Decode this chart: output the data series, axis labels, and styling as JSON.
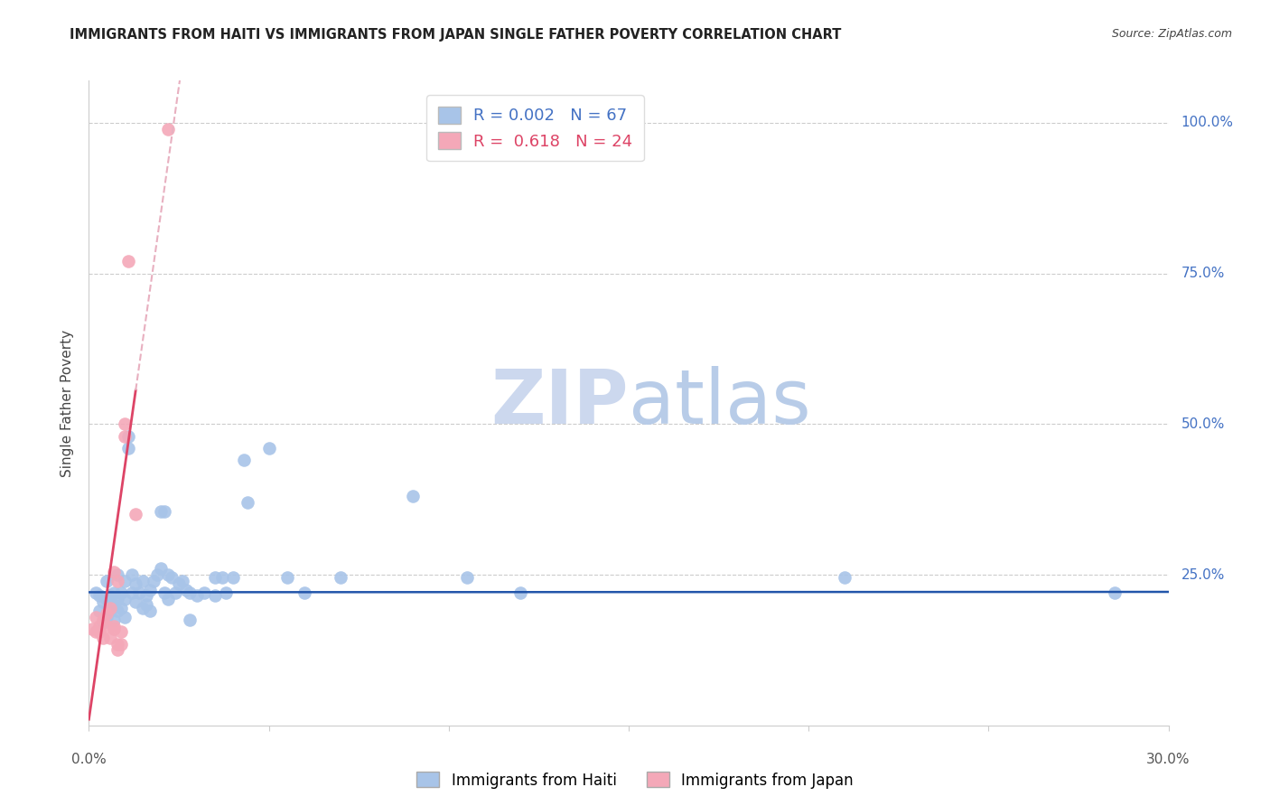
{
  "title": "IMMIGRANTS FROM HAITI VS IMMIGRANTS FROM JAPAN SINGLE FATHER POVERTY CORRELATION CHART",
  "source": "Source: ZipAtlas.com",
  "ylabel": "Single Father Poverty",
  "ytick_labels": [
    "100.0%",
    "75.0%",
    "50.0%",
    "25.0%"
  ],
  "ytick_values": [
    1.0,
    0.75,
    0.5,
    0.25
  ],
  "xlim": [
    0.0,
    0.3
  ],
  "ylim": [
    0.0,
    1.07
  ],
  "R_haiti": 0.002,
  "N_haiti": 67,
  "R_japan": 0.618,
  "N_japan": 24,
  "haiti_color": "#a8c4e8",
  "japan_color": "#f4a8b8",
  "trend_haiti_color": "#2255aa",
  "trend_japan_color": "#dd4466",
  "trend_dashed_color": "#e8b0c0",
  "watermark_zip_color": "#ccd8ee",
  "watermark_atlas_color": "#b8cce8",
  "haiti_points": [
    [
      0.002,
      0.22
    ],
    [
      0.003,
      0.215
    ],
    [
      0.003,
      0.19
    ],
    [
      0.004,
      0.205
    ],
    [
      0.004,
      0.17
    ],
    [
      0.005,
      0.24
    ],
    [
      0.005,
      0.21
    ],
    [
      0.005,
      0.18
    ],
    [
      0.006,
      0.215
    ],
    [
      0.006,
      0.19
    ],
    [
      0.007,
      0.22
    ],
    [
      0.007,
      0.2
    ],
    [
      0.007,
      0.175
    ],
    [
      0.008,
      0.25
    ],
    [
      0.008,
      0.21
    ],
    [
      0.008,
      0.19
    ],
    [
      0.009,
      0.22
    ],
    [
      0.009,
      0.195
    ],
    [
      0.01,
      0.24
    ],
    [
      0.01,
      0.21
    ],
    [
      0.01,
      0.18
    ],
    [
      0.011,
      0.48
    ],
    [
      0.011,
      0.46
    ],
    [
      0.012,
      0.25
    ],
    [
      0.012,
      0.22
    ],
    [
      0.013,
      0.235
    ],
    [
      0.013,
      0.205
    ],
    [
      0.014,
      0.22
    ],
    [
      0.015,
      0.195
    ],
    [
      0.015,
      0.24
    ],
    [
      0.016,
      0.215
    ],
    [
      0.016,
      0.2
    ],
    [
      0.017,
      0.225
    ],
    [
      0.017,
      0.19
    ],
    [
      0.018,
      0.24
    ],
    [
      0.019,
      0.25
    ],
    [
      0.02,
      0.355
    ],
    [
      0.02,
      0.26
    ],
    [
      0.021,
      0.355
    ],
    [
      0.021,
      0.22
    ],
    [
      0.022,
      0.25
    ],
    [
      0.022,
      0.21
    ],
    [
      0.023,
      0.245
    ],
    [
      0.024,
      0.22
    ],
    [
      0.025,
      0.235
    ],
    [
      0.026,
      0.24
    ],
    [
      0.027,
      0.225
    ],
    [
      0.028,
      0.22
    ],
    [
      0.028,
      0.175
    ],
    [
      0.03,
      0.215
    ],
    [
      0.032,
      0.22
    ],
    [
      0.035,
      0.245
    ],
    [
      0.035,
      0.215
    ],
    [
      0.037,
      0.245
    ],
    [
      0.038,
      0.22
    ],
    [
      0.04,
      0.245
    ],
    [
      0.043,
      0.44
    ],
    [
      0.044,
      0.37
    ],
    [
      0.05,
      0.46
    ],
    [
      0.055,
      0.245
    ],
    [
      0.06,
      0.22
    ],
    [
      0.07,
      0.245
    ],
    [
      0.09,
      0.38
    ],
    [
      0.105,
      0.245
    ],
    [
      0.12,
      0.22
    ],
    [
      0.21,
      0.245
    ],
    [
      0.285,
      0.22
    ]
  ],
  "japan_points": [
    [
      0.001,
      0.16
    ],
    [
      0.002,
      0.155
    ],
    [
      0.002,
      0.18
    ],
    [
      0.003,
      0.165
    ],
    [
      0.003,
      0.155
    ],
    [
      0.004,
      0.145
    ],
    [
      0.004,
      0.175
    ],
    [
      0.005,
      0.185
    ],
    [
      0.005,
      0.165
    ],
    [
      0.006,
      0.195
    ],
    [
      0.006,
      0.145
    ],
    [
      0.007,
      0.165
    ],
    [
      0.007,
      0.16
    ],
    [
      0.007,
      0.255
    ],
    [
      0.008,
      0.24
    ],
    [
      0.008,
      0.135
    ],
    [
      0.008,
      0.125
    ],
    [
      0.009,
      0.155
    ],
    [
      0.009,
      0.135
    ],
    [
      0.01,
      0.48
    ],
    [
      0.01,
      0.5
    ],
    [
      0.011,
      0.77
    ],
    [
      0.013,
      0.35
    ],
    [
      0.022,
      0.99
    ]
  ],
  "trend_haiti_intercept": 0.221,
  "trend_haiti_slope": 0.002,
  "trend_japan_intercept": 0.01,
  "trend_japan_slope": 42.0
}
